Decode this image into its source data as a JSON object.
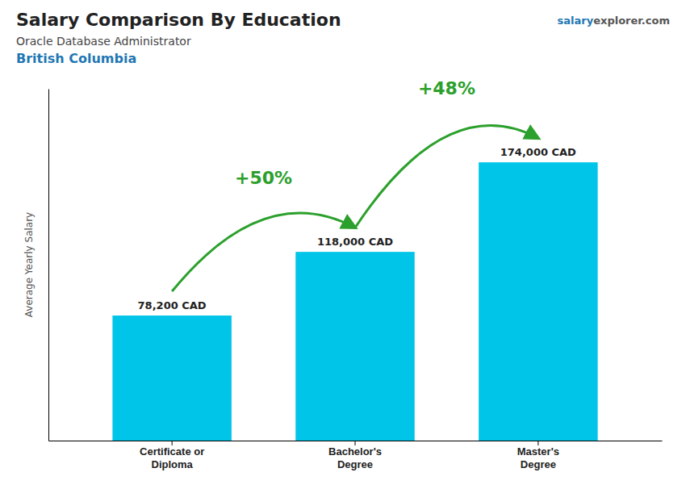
{
  "chart_data": {
    "type": "bar",
    "title": "Salary Comparison By Education",
    "subtitle": [
      "Oracle Database Administrator",
      "British Columbia"
    ],
    "watermark": [
      "salary",
      "explorer.com"
    ],
    "ylabel": "Average Yearly Salary",
    "categories": [
      "Certificate or\nDiploma",
      "Bachelor's\nDegree",
      "Master's\nDegree"
    ],
    "values": [
      78200,
      118000,
      174000
    ],
    "value_labels": [
      "78,200 CAD",
      "118,000 CAD",
      "174,000 CAD"
    ],
    "data_labels": true,
    "annotations": [
      "+50%",
      "+48%"
    ],
    "color": "#00C5E8",
    "ylim": [
      0,
      220000
    ],
    "grid": false,
    "tick_labels": "x"
  }
}
